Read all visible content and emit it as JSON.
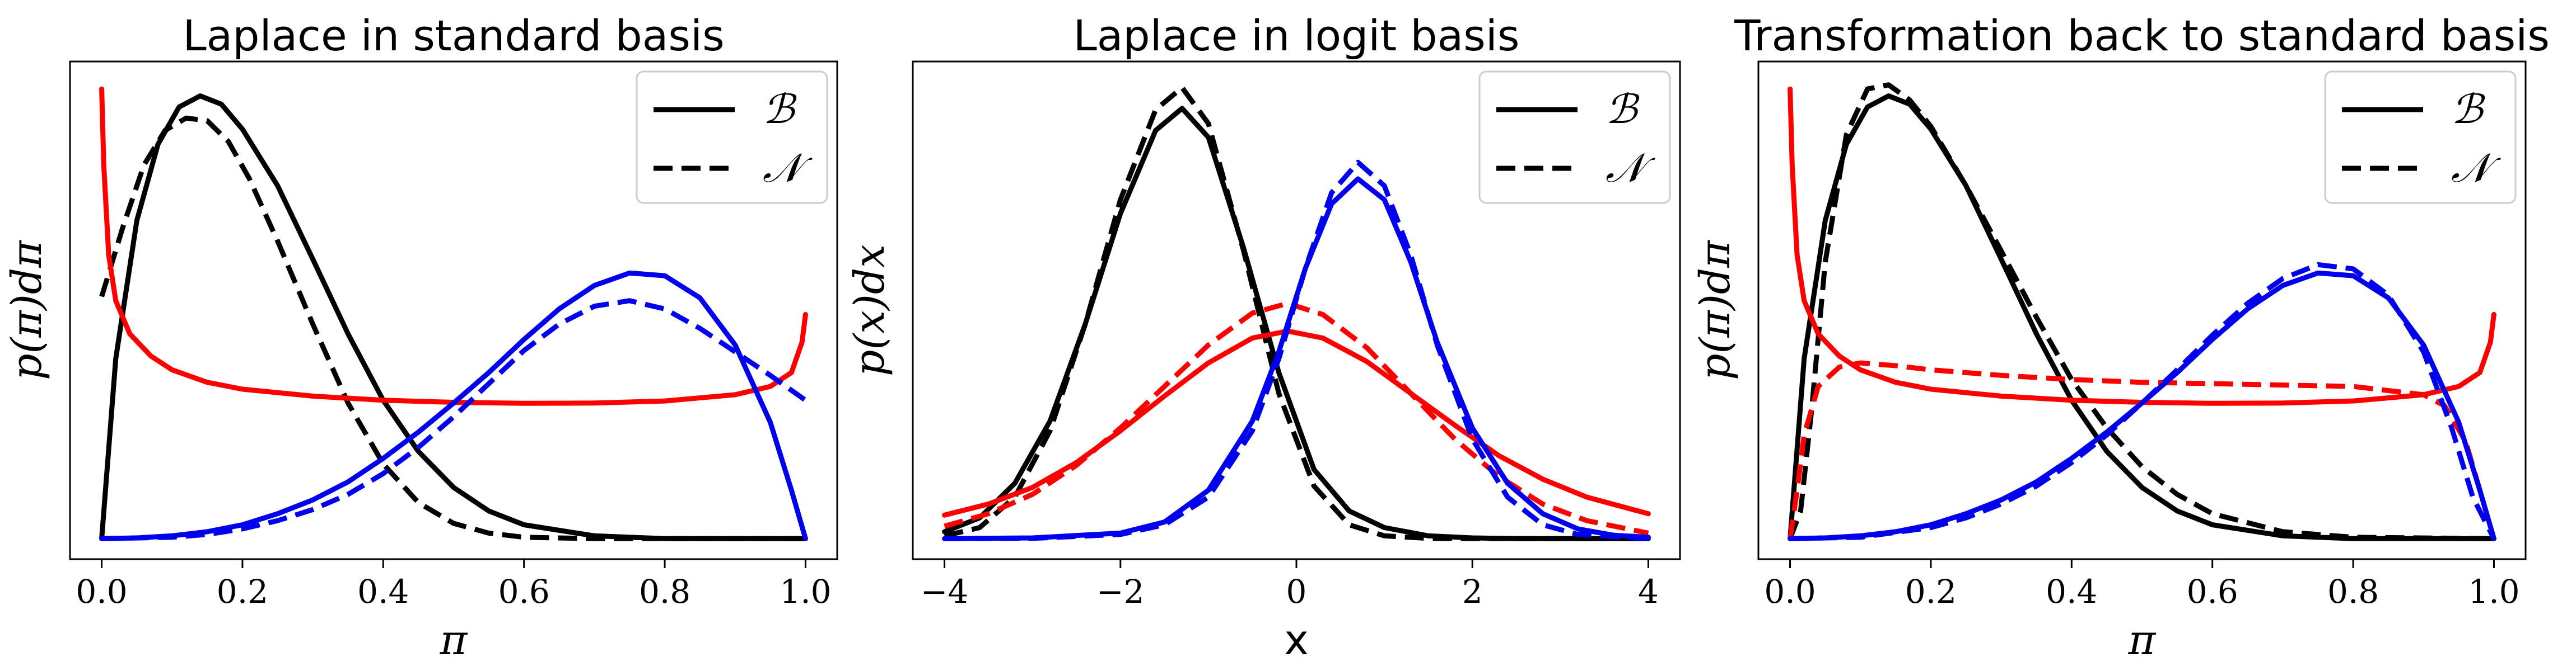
{
  "chart_data": [
    {
      "type": "line",
      "title": "Laplace in standard basis",
      "xlabel": "π",
      "ylabel": "p(π)dπ",
      "xlim": [
        0,
        1
      ],
      "ylim": [
        0,
        3.3
      ],
      "x_ticks": [
        "0.0",
        "0.2",
        "0.4",
        "0.6",
        "0.8",
        "1.0"
      ],
      "legend": {
        "position": "upper right",
        "entries": [
          {
            "label": "ℬ",
            "style": "solid"
          },
          {
            "label": "𝒩",
            "style": "dashed"
          }
        ]
      },
      "series": [
        {
          "color": "#000000",
          "style": "solid",
          "x": [
            0,
            0.02,
            0.05,
            0.08,
            0.11,
            0.14,
            0.17,
            0.2,
            0.25,
            0.3,
            0.35,
            0.4,
            0.45,
            0.5,
            0.55,
            0.6,
            0.7,
            0.8,
            0.9,
            1.0
          ],
          "y": [
            0,
            1.3,
            2.3,
            2.85,
            3.12,
            3.2,
            3.14,
            2.96,
            2.55,
            2.02,
            1.48,
            1.0,
            0.63,
            0.37,
            0.2,
            0.1,
            0.02,
            0,
            0,
            0
          ]
        },
        {
          "color": "#000000",
          "style": "dashed",
          "x": [
            0,
            0.03,
            0.06,
            0.09,
            0.12,
            0.15,
            0.18,
            0.21,
            0.25,
            0.3,
            0.35,
            0.4,
            0.45,
            0.5,
            0.55,
            0.6,
            0.7,
            1.0
          ],
          "y": [
            1.75,
            2.25,
            2.7,
            2.95,
            3.04,
            3.02,
            2.87,
            2.6,
            2.15,
            1.55,
            0.98,
            0.54,
            0.26,
            0.11,
            0.04,
            0.01,
            0,
            0
          ]
        },
        {
          "color": "#ff0000",
          "style": "solid",
          "x": [
            0,
            0.003,
            0.01,
            0.02,
            0.04,
            0.07,
            0.1,
            0.15,
            0.2,
            0.3,
            0.4,
            0.5,
            0.6,
            0.7,
            0.8,
            0.9,
            0.95,
            0.98,
            0.995,
            1.0
          ],
          "y": [
            3.25,
            2.7,
            2.05,
            1.72,
            1.48,
            1.32,
            1.22,
            1.13,
            1.08,
            1.03,
            1.0,
            0.985,
            0.978,
            0.98,
            0.995,
            1.04,
            1.1,
            1.2,
            1.42,
            1.62
          ]
        },
        {
          "color": "#0000ee",
          "style": "solid",
          "x": [
            0,
            0.05,
            0.1,
            0.15,
            0.2,
            0.25,
            0.3,
            0.35,
            0.4,
            0.45,
            0.5,
            0.55,
            0.6,
            0.65,
            0.7,
            0.75,
            0.8,
            0.85,
            0.9,
            0.95,
            0.98,
            1.0
          ],
          "y": [
            0,
            0.005,
            0.02,
            0.05,
            0.1,
            0.18,
            0.28,
            0.41,
            0.58,
            0.77,
            0.98,
            1.2,
            1.44,
            1.66,
            1.83,
            1.92,
            1.9,
            1.74,
            1.4,
            0.84,
            0.35,
            0
          ]
        },
        {
          "color": "#0000ee",
          "style": "dashed",
          "x": [
            0,
            0.1,
            0.15,
            0.2,
            0.25,
            0.3,
            0.35,
            0.4,
            0.45,
            0.5,
            0.55,
            0.6,
            0.65,
            0.7,
            0.75,
            0.8,
            0.85,
            0.9,
            0.95,
            1.0
          ],
          "y": [
            0,
            0.01,
            0.03,
            0.07,
            0.13,
            0.21,
            0.32,
            0.47,
            0.66,
            0.88,
            1.12,
            1.36,
            1.55,
            1.68,
            1.72,
            1.66,
            1.52,
            1.35,
            1.18,
            1.0
          ]
        }
      ]
    },
    {
      "type": "line",
      "title": "Laplace in logit basis",
      "xlabel": "x",
      "ylabel": "p(x)dx",
      "xlim": [
        -4,
        4
      ],
      "ylim": [
        0,
        3.3
      ],
      "x_ticks": [
        "−4",
        "−2",
        "0",
        "2",
        "4"
      ],
      "legend": {
        "position": "upper right",
        "entries": [
          {
            "label": "ℬ",
            "style": "solid"
          },
          {
            "label": "𝒩",
            "style": "dashed"
          }
        ]
      },
      "series": [
        {
          "color": "#000000",
          "style": "solid",
          "x": [
            -4,
            -3.6,
            -3.2,
            -2.8,
            -2.4,
            -2.0,
            -1.6,
            -1.3,
            -1.0,
            -0.6,
            -0.2,
            0.2,
            0.6,
            1.0,
            1.5,
            2.0,
            2.5,
            3.0,
            4.0
          ],
          "y": [
            0.05,
            0.15,
            0.4,
            0.85,
            1.55,
            2.35,
            2.95,
            3.11,
            2.9,
            2.1,
            1.2,
            0.5,
            0.2,
            0.08,
            0.02,
            0.005,
            0,
            0,
            0
          ]
        },
        {
          "color": "#000000",
          "style": "dashed",
          "x": [
            -4,
            -3.6,
            -3.2,
            -2.8,
            -2.4,
            -2.0,
            -1.6,
            -1.3,
            -1.0,
            -0.6,
            -0.2,
            0.2,
            0.6,
            1.0,
            1.5,
            2.0,
            4.0
          ],
          "y": [
            0.02,
            0.08,
            0.3,
            0.78,
            1.55,
            2.45,
            3.1,
            3.26,
            3.0,
            2.08,
            1.05,
            0.38,
            0.1,
            0.02,
            0.002,
            0,
            0
          ]
        },
        {
          "color": "#ff0000",
          "style": "solid",
          "x": [
            -4,
            -3.5,
            -3.0,
            -2.5,
            -2.0,
            -1.5,
            -1.0,
            -0.5,
            -0.1,
            0.3,
            0.8,
            1.3,
            1.8,
            2.3,
            2.8,
            3.3,
            4.0
          ],
          "y": [
            0.17,
            0.25,
            0.37,
            0.55,
            0.78,
            1.03,
            1.27,
            1.45,
            1.5,
            1.45,
            1.28,
            1.05,
            0.82,
            0.6,
            0.43,
            0.3,
            0.18
          ]
        },
        {
          "color": "#ff0000",
          "style": "dashed",
          "x": [
            -4,
            -3.5,
            -3.0,
            -2.5,
            -2.0,
            -1.5,
            -1.0,
            -0.5,
            -0.1,
            0.3,
            0.8,
            1.3,
            1.8,
            2.3,
            2.8,
            3.3,
            4.0
          ],
          "y": [
            0.09,
            0.18,
            0.32,
            0.53,
            0.8,
            1.1,
            1.4,
            1.63,
            1.7,
            1.62,
            1.38,
            1.05,
            0.72,
            0.45,
            0.25,
            0.13,
            0.04
          ]
        },
        {
          "color": "#0000ee",
          "style": "solid",
          "x": [
            -4,
            -3.0,
            -2.0,
            -1.5,
            -1.0,
            -0.5,
            -0.2,
            0.1,
            0.4,
            0.7,
            1.0,
            1.3,
            1.6,
            2.0,
            2.4,
            2.8,
            3.2,
            3.6,
            4.0
          ],
          "y": [
            0,
            0.005,
            0.04,
            0.12,
            0.35,
            0.85,
            1.35,
            1.95,
            2.42,
            2.6,
            2.45,
            2.0,
            1.42,
            0.8,
            0.4,
            0.18,
            0.07,
            0.025,
            0.01
          ]
        },
        {
          "color": "#0000ee",
          "style": "dashed",
          "x": [
            -4,
            -3.0,
            -2.0,
            -1.5,
            -1.0,
            -0.5,
            -0.2,
            0.1,
            0.4,
            0.7,
            1.0,
            1.3,
            1.6,
            2.0,
            2.4,
            2.8,
            3.2,
            4.0
          ],
          "y": [
            0,
            0.002,
            0.03,
            0.1,
            0.3,
            0.78,
            1.3,
            1.95,
            2.5,
            2.72,
            2.55,
            2.05,
            1.4,
            0.72,
            0.3,
            0.1,
            0.03,
            0
          ]
        }
      ]
    },
    {
      "type": "line",
      "title": "Transformation back to standard basis",
      "xlabel": "π",
      "ylabel": "p(π)dπ",
      "xlim": [
        0,
        1
      ],
      "ylim": [
        0,
        3.3
      ],
      "x_ticks": [
        "0.0",
        "0.2",
        "0.4",
        "0.6",
        "0.8",
        "1.0"
      ],
      "legend": {
        "position": "upper right",
        "entries": [
          {
            "label": "ℬ",
            "style": "solid"
          },
          {
            "label": "𝒩",
            "style": "dashed"
          }
        ]
      },
      "series": [
        {
          "color": "#000000",
          "style": "solid",
          "x": [
            0,
            0.02,
            0.05,
            0.08,
            0.11,
            0.14,
            0.17,
            0.2,
            0.25,
            0.3,
            0.35,
            0.4,
            0.45,
            0.5,
            0.55,
            0.6,
            0.7,
            0.8,
            0.9,
            1.0
          ],
          "y": [
            0,
            1.3,
            2.3,
            2.85,
            3.12,
            3.2,
            3.14,
            2.96,
            2.55,
            2.02,
            1.48,
            1.0,
            0.63,
            0.37,
            0.2,
            0.1,
            0.02,
            0,
            0,
            0
          ]
        },
        {
          "color": "#000000",
          "style": "dashed",
          "x": [
            0,
            0.015,
            0.03,
            0.05,
            0.08,
            0.11,
            0.14,
            0.17,
            0.2,
            0.25,
            0.3,
            0.35,
            0.4,
            0.45,
            0.5,
            0.55,
            0.6,
            0.7,
            0.8,
            1.0
          ],
          "y": [
            0,
            0.2,
            0.9,
            2.0,
            2.92,
            3.25,
            3.28,
            3.17,
            2.98,
            2.55,
            2.08,
            1.6,
            1.15,
            0.8,
            0.52,
            0.32,
            0.18,
            0.05,
            0.01,
            0
          ]
        },
        {
          "color": "#ff0000",
          "style": "solid",
          "x": [
            0,
            0.003,
            0.01,
            0.02,
            0.04,
            0.07,
            0.1,
            0.15,
            0.2,
            0.3,
            0.4,
            0.5,
            0.6,
            0.7,
            0.8,
            0.9,
            0.95,
            0.98,
            0.995,
            1.0
          ],
          "y": [
            3.25,
            2.7,
            2.05,
            1.72,
            1.48,
            1.32,
            1.22,
            1.13,
            1.08,
            1.03,
            1.0,
            0.985,
            0.978,
            0.98,
            0.995,
            1.04,
            1.1,
            1.2,
            1.42,
            1.62
          ]
        },
        {
          "color": "#ff0000",
          "style": "dashed",
          "x": [
            0,
            0.01,
            0.02,
            0.04,
            0.07,
            0.1,
            0.15,
            0.2,
            0.3,
            0.4,
            0.5,
            0.6,
            0.7,
            0.8,
            0.9,
            0.93,
            0.96,
            0.98,
            1.0
          ],
          "y": [
            0,
            0.35,
            0.75,
            1.1,
            1.24,
            1.27,
            1.25,
            1.22,
            1.18,
            1.15,
            1.13,
            1.12,
            1.11,
            1.1,
            1.04,
            0.96,
            0.7,
            0.35,
            0
          ]
        },
        {
          "color": "#0000ee",
          "style": "solid",
          "x": [
            0,
            0.05,
            0.1,
            0.15,
            0.2,
            0.25,
            0.3,
            0.35,
            0.4,
            0.45,
            0.5,
            0.55,
            0.6,
            0.65,
            0.7,
            0.75,
            0.8,
            0.85,
            0.9,
            0.95,
            0.98,
            1.0
          ],
          "y": [
            0,
            0.005,
            0.02,
            0.05,
            0.1,
            0.18,
            0.28,
            0.41,
            0.58,
            0.77,
            0.98,
            1.2,
            1.44,
            1.66,
            1.83,
            1.92,
            1.9,
            1.74,
            1.4,
            0.84,
            0.35,
            0
          ]
        },
        {
          "color": "#0000ee",
          "style": "dashed",
          "x": [
            0,
            0.1,
            0.2,
            0.25,
            0.3,
            0.35,
            0.4,
            0.45,
            0.5,
            0.55,
            0.6,
            0.65,
            0.7,
            0.75,
            0.8,
            0.85,
            0.9,
            0.94,
            0.97,
            1.0
          ],
          "y": [
            0,
            0.01,
            0.08,
            0.15,
            0.25,
            0.38,
            0.55,
            0.75,
            0.98,
            1.22,
            1.47,
            1.7,
            1.88,
            1.98,
            1.95,
            1.76,
            1.35,
            0.8,
            0.3,
            0
          ]
        }
      ]
    }
  ]
}
